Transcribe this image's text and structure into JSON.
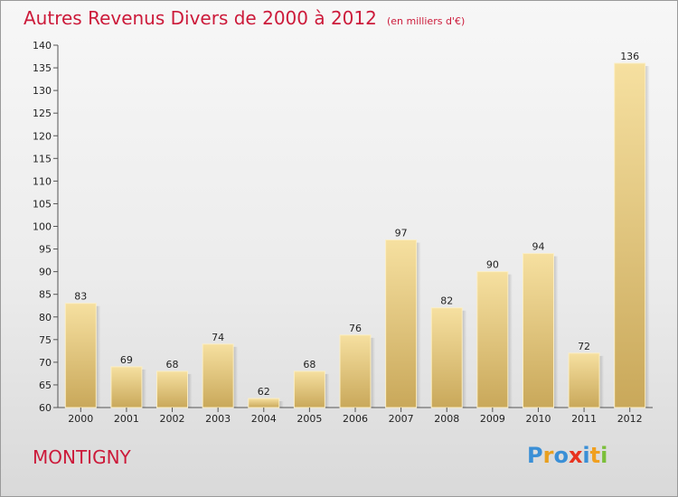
{
  "header": {
    "title": "Autres Revenus Divers de 2000 à 2012",
    "unit": "(en milliers d'€)"
  },
  "footer": {
    "commune": "MONTIGNY",
    "logo_text": "Proxiti"
  },
  "colors": {
    "title": "#cc1a3a",
    "bar_light": "#f6e0a0",
    "bar_dark": "#c9a85a",
    "logo_letters": [
      "#3a8fd6",
      "#e8a020",
      "#3a8fd6",
      "#e8331f",
      "#3a8fd6",
      "#f0a020",
      "#7bbf3a"
    ]
  },
  "chart_data": {
    "type": "bar",
    "title": "Autres Revenus Divers de 2000 à 2012",
    "categories": [
      "2000",
      "2001",
      "2002",
      "2003",
      "2004",
      "2005",
      "2006",
      "2007",
      "2008",
      "2009",
      "2010",
      "2011",
      "2012"
    ],
    "values": [
      83,
      69,
      68,
      74,
      62,
      68,
      76,
      97,
      82,
      90,
      94,
      72,
      136
    ],
    "ylim": [
      60,
      140
    ],
    "yticks": [
      60,
      65,
      70,
      75,
      80,
      85,
      90,
      95,
      100,
      105,
      110,
      115,
      120,
      125,
      130,
      135,
      140
    ],
    "grid": false,
    "xlabel": "",
    "ylabel": ""
  }
}
